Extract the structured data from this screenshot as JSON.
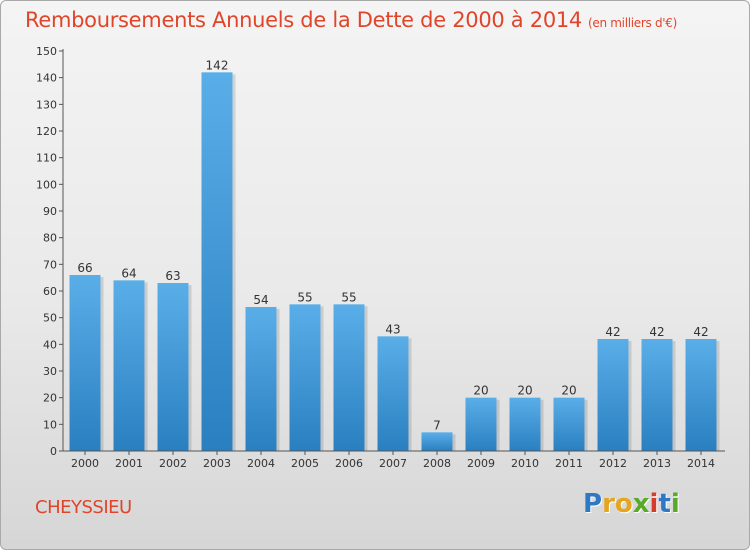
{
  "header": {
    "title": "Remboursements Annuels de la Dette de 2000 à 2014",
    "unit": "(en milliers d'€)"
  },
  "footer": {
    "commune": "CHEYSSIEU",
    "logo": "Proxiti",
    "logo_colors": [
      "#2f78c4",
      "#e6a51b",
      "#e6a51b",
      "#5aaa2a",
      "#d43c2c",
      "#2f78c4",
      "#5aaa2a"
    ]
  },
  "chart_data": {
    "type": "bar",
    "categories": [
      "2000",
      "2001",
      "2002",
      "2003",
      "2004",
      "2005",
      "2006",
      "2007",
      "2008",
      "2009",
      "2010",
      "2011",
      "2012",
      "2013",
      "2014"
    ],
    "values": [
      66,
      64,
      63,
      142,
      54,
      55,
      55,
      43,
      7,
      20,
      20,
      20,
      42,
      42,
      42
    ],
    "ylim": [
      0,
      150
    ],
    "yticks": [
      0,
      10,
      20,
      30,
      40,
      50,
      60,
      70,
      80,
      90,
      100,
      110,
      120,
      130,
      140,
      150
    ],
    "grid": false,
    "bar_color_light": "#5aaee8",
    "bar_color_dark": "#2a7fc0"
  }
}
